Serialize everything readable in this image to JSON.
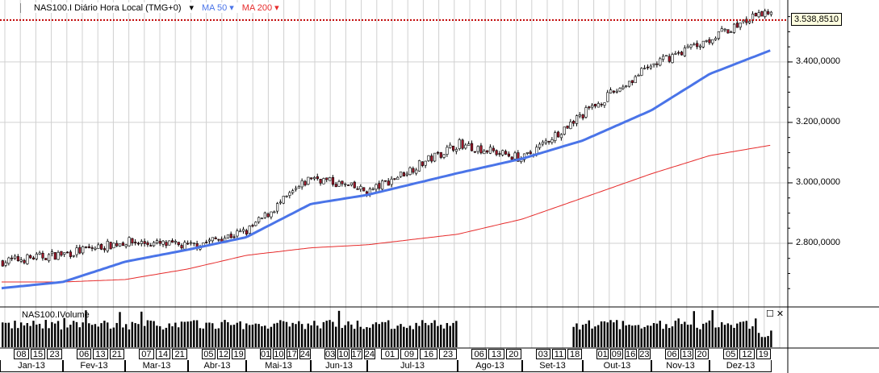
{
  "header": {
    "icon": "Eq",
    "symbol": "NAS100.I Diário Hora Local (TMG+0)",
    "ma50": "MA 50",
    "ma200": "MA 200"
  },
  "price_label": "3.538,8510",
  "volume_panel": {
    "title": "NAS100.IVolume"
  },
  "colors": {
    "up": "#ffffff",
    "down": "#a0182a",
    "ma50": "#4a74e8",
    "ma200": "#e62b2b",
    "grid": "#d0d0d0",
    "last_price_line": "#c00000"
  },
  "chart_data": {
    "type": "candlestick",
    "yaxis": {
      "ticks": [
        "3.400,0000",
        "3.200,0000",
        "3.000,0000",
        "2.800,0000"
      ],
      "tick_values": [
        3400,
        3200,
        3000,
        2800
      ],
      "range": [
        2592,
        3605
      ]
    },
    "last_price": 3538.851,
    "approx_close_path": {
      "months": [
        "Jan-13",
        "Fev-13",
        "Mar-13",
        "Abr-13",
        "Mai-13",
        "Jun-13",
        "Jul-13",
        "Ago-13",
        "Set-13",
        "Out-13",
        "Nov-13",
        "Dez-13"
      ],
      "close_start": [
        2739,
        2765,
        2805,
        2790,
        2840,
        3020,
        2970,
        3130,
        3080,
        3230,
        3390,
        3480
      ],
      "ma50_start": [
        2651,
        2672,
        2739,
        2779,
        2820,
        2930,
        2960,
        3032,
        3080,
        3140,
        3240,
        3360
      ],
      "ma200_start": [
        2672,
        2672,
        2680,
        2715,
        2760,
        2785,
        2795,
        2830,
        2880,
        2950,
        3030,
        3090
      ],
      "close_end": 3575,
      "ma50_end": 3440,
      "ma200_end": 3125
    },
    "x_months": [
      {
        "label": "Jan-13",
        "weeks": [
          "08",
          "15",
          "23"
        ]
      },
      {
        "label": "Fev-13",
        "weeks": [
          "06",
          "13",
          "21"
        ]
      },
      {
        "label": "Mar-13",
        "weeks": [
          "07",
          "14",
          "21"
        ]
      },
      {
        "label": "Abr-13",
        "weeks": [
          "05",
          "12",
          "19"
        ]
      },
      {
        "label": "Mai-13",
        "weeks": [
          "01",
          "10",
          "17",
          "24"
        ]
      },
      {
        "label": "Jun-13",
        "weeks": [
          "03",
          "10",
          "17",
          "24"
        ]
      },
      {
        "label": "Jul-13",
        "weeks": [
          "01",
          "09",
          "16",
          "23"
        ]
      },
      {
        "label": "Ago-13",
        "weeks": [
          "06",
          "13",
          "20"
        ]
      },
      {
        "label": "Set-13",
        "weeks": [
          "03",
          "11",
          "18"
        ]
      },
      {
        "label": "Out-13",
        "weeks": [
          "01",
          "09",
          "16",
          "23"
        ]
      },
      {
        "label": "Nov-13",
        "weeks": [
          "06",
          "13",
          "20"
        ]
      },
      {
        "label": "Dez-13",
        "weeks": [
          "05",
          "12",
          "19"
        ]
      }
    ]
  }
}
